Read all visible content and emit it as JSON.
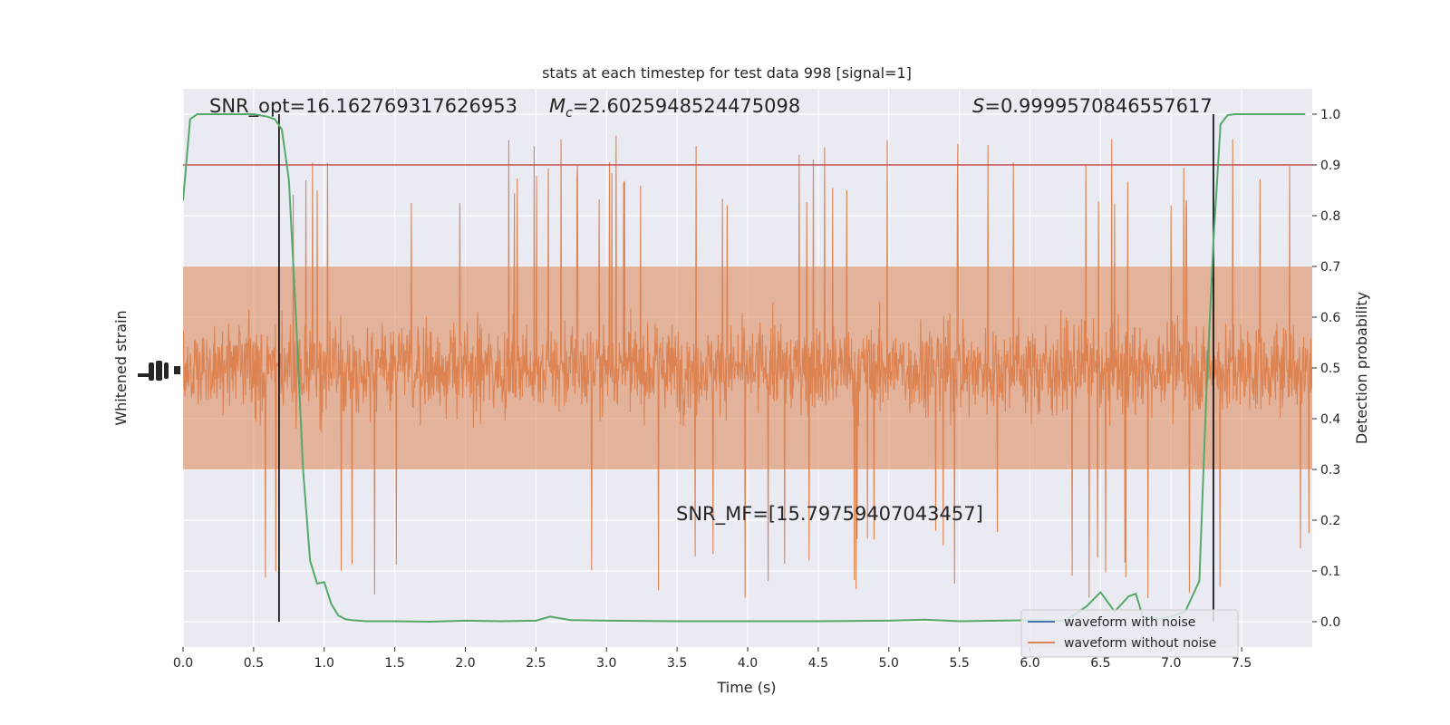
{
  "chart_data": {
    "type": "line",
    "title": "stats at each timestep for test data 998 [signal=1]",
    "xlabel": "Time (s)",
    "ylabel_left": "Whitened strain",
    "ylabel_right": "Detection probability",
    "xlim": [
      0.0,
      8.0
    ],
    "ylim_right": [
      -0.05,
      1.05
    ],
    "x_ticks": [
      "0.0",
      "0.5",
      "1.0",
      "1.5",
      "2.0",
      "2.5",
      "3.0",
      "3.5",
      "4.0",
      "4.5",
      "5.0",
      "5.5",
      "6.0",
      "6.5",
      "7.0",
      "7.5"
    ],
    "y_ticks_right": [
      "0.0",
      "0.1",
      "0.2",
      "0.3",
      "0.4",
      "0.5",
      "0.6",
      "0.7",
      "0.8",
      "0.9",
      "1.0"
    ],
    "grid": true,
    "threshold": 0.9,
    "vlines_x": [
      0.68,
      7.3
    ],
    "annotations": {
      "snr_opt": "SNR_opt=16.162769317626953",
      "mc_symbol": "M",
      "mc_sub": "c",
      "mc_value": "=2.6025948524475098",
      "s_symbol": "S",
      "s_value": "=0.9999570846557617",
      "snr_mf": "SNR_MF=[15.797594070434​57]"
    },
    "legend_position": "lower-right",
    "series": [
      {
        "name": "waveform with noise",
        "color": "#4c72b0"
      },
      {
        "name": "waveform without noise",
        "color": "#dd8452"
      }
    ],
    "detection_probability": {
      "color": "#55a868",
      "x": [
        0.0,
        0.05,
        0.1,
        0.2,
        0.3,
        0.4,
        0.5,
        0.6,
        0.65,
        0.7,
        0.75,
        0.8,
        0.85,
        0.9,
        0.95,
        1.0,
        1.05,
        1.1,
        1.15,
        1.2,
        1.3,
        1.5,
        1.75,
        2.0,
        2.25,
        2.5,
        2.6,
        2.75,
        3.0,
        3.5,
        4.0,
        4.5,
        5.0,
        5.25,
        5.5,
        6.0,
        6.25,
        6.4,
        6.5,
        6.6,
        6.7,
        6.75,
        6.8,
        6.9,
        7.0,
        7.1,
        7.2,
        7.25,
        7.3,
        7.35,
        7.4,
        7.45,
        7.5,
        7.6,
        7.8,
        7.95
      ],
      "y": [
        0.83,
        0.99,
        1.0,
        1.0,
        1.0,
        1.0,
        1.0,
        0.995,
        0.99,
        0.97,
        0.87,
        0.6,
        0.3,
        0.12,
        0.075,
        0.078,
        0.035,
        0.012,
        0.005,
        0.003,
        0.001,
        0.001,
        0.0,
        0.002,
        0.001,
        0.002,
        0.01,
        0.003,
        0.002,
        0.001,
        0.001,
        0.001,
        0.002,
        0.004,
        0.001,
        0.003,
        0.002,
        0.03,
        0.058,
        0.02,
        0.05,
        0.055,
        0.01,
        0.005,
        0.01,
        0.02,
        0.08,
        0.45,
        0.75,
        0.98,
        0.998,
        1.0,
        1.0,
        1.0,
        1.0,
        1.0
      ],
      "threshold_color": "#c44e52",
      "vline_color": "#000000"
    },
    "strain_noise": {
      "color": "#dd8452",
      "center": 0.5,
      "typical_band": [
        0.29,
        0.72
      ],
      "spike_peaks_high": [
        0.98,
        0.95,
        0.93,
        0.97
      ],
      "spike_peaks_low": [
        0.0,
        0.05,
        0.07
      ]
    }
  }
}
